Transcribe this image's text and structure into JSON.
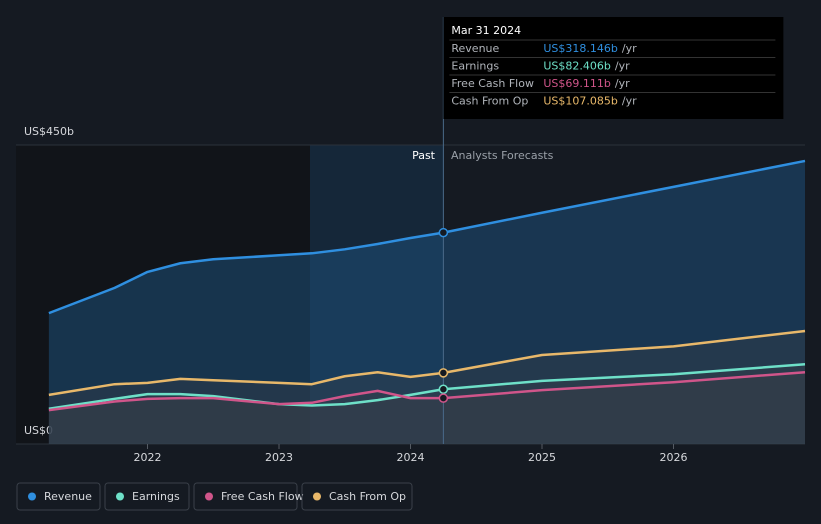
{
  "chart_data": {
    "type": "line",
    "x": [
      2021.25,
      2021.75,
      2022,
      2022.25,
      2022.5,
      2023,
      2023.25,
      2023.5,
      2023.75,
      2024,
      2024.25,
      2025,
      2026,
      2027
    ],
    "series": [
      {
        "name": "Revenue",
        "color": "#2f8fe0",
        "values": [
          197,
          235,
          259,
          272,
          278,
          284,
          287,
          293,
          301,
          310,
          318.146,
          348,
          387,
          426
        ]
      },
      {
        "name": "Earnings",
        "color": "#6ee0c8",
        "values": [
          53,
          68,
          75,
          75,
          72,
          60,
          58,
          60,
          66,
          74,
          82.406,
          95,
          105,
          120
        ]
      },
      {
        "name": "Free Cash Flow",
        "color": "#d0558a",
        "values": [
          51,
          64,
          68,
          69,
          69,
          60,
          62,
          72,
          80,
          69,
          69.111,
          81,
          93,
          108
        ]
      },
      {
        "name": "Cash From Op",
        "color": "#e8b86a",
        "values": [
          74,
          90,
          92,
          98,
          96,
          92,
          90,
          102,
          108,
          101,
          107.085,
          134,
          147,
          170
        ]
      }
    ],
    "xlim": [
      2021,
      2027
    ],
    "xticks": [
      2022,
      2023,
      2024,
      2025,
      2026
    ],
    "ylim": [
      0,
      450
    ],
    "yticks": [
      {
        "value": 0,
        "label": "US$0"
      },
      {
        "value": 450,
        "label": "US$450b"
      }
    ],
    "annotations": {
      "past": "Past",
      "forecast": "Analysts Forecasts"
    },
    "tooltip": {
      "date": "Mar 31 2024",
      "rows": [
        {
          "label": "Revenue",
          "value_label": "US$318.146b",
          "unit": "/yr"
        },
        {
          "label": "Earnings",
          "value_label": "US$82.406b",
          "unit": "/yr"
        },
        {
          "label": "Free Cash Flow",
          "value_label": "US$69.111b",
          "unit": "/yr"
        },
        {
          "label": "Cash From Op",
          "value_label": "US$107.085b",
          "unit": "/yr"
        }
      ]
    }
  }
}
